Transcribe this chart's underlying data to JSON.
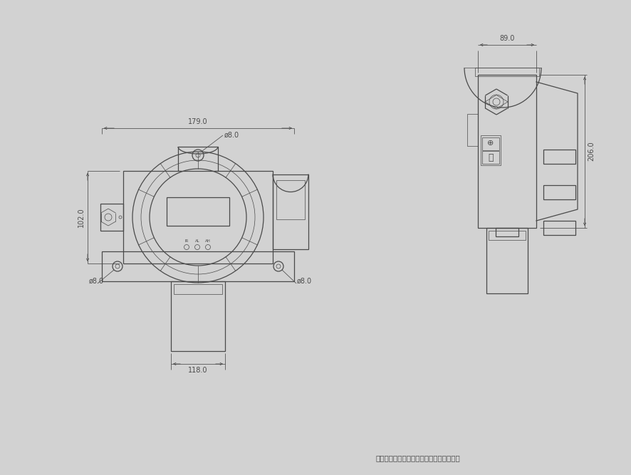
{
  "bg_color": "#d2d2d2",
  "lc": "#4a4a4a",
  "dc": "#4a4a4a",
  "title": "带声光报警气体检测仪外形及其安装孔位图",
  "dim_179": "179.0",
  "dim_89": "89.0",
  "dim_102": "102.0",
  "dim_206": "206.0",
  "dim_118": "118.0",
  "dim_phi8_top": "ø8.0",
  "dim_phi8_left": "ø8.0",
  "dim_phi8_right": "ø8.0",
  "labels_led": [
    "IR",
    "AL",
    "AH"
  ],
  "fs_dim": 7.0,
  "fs_title": 7.5,
  "lw": 0.9,
  "lt": 0.5,
  "ld": 0.55
}
